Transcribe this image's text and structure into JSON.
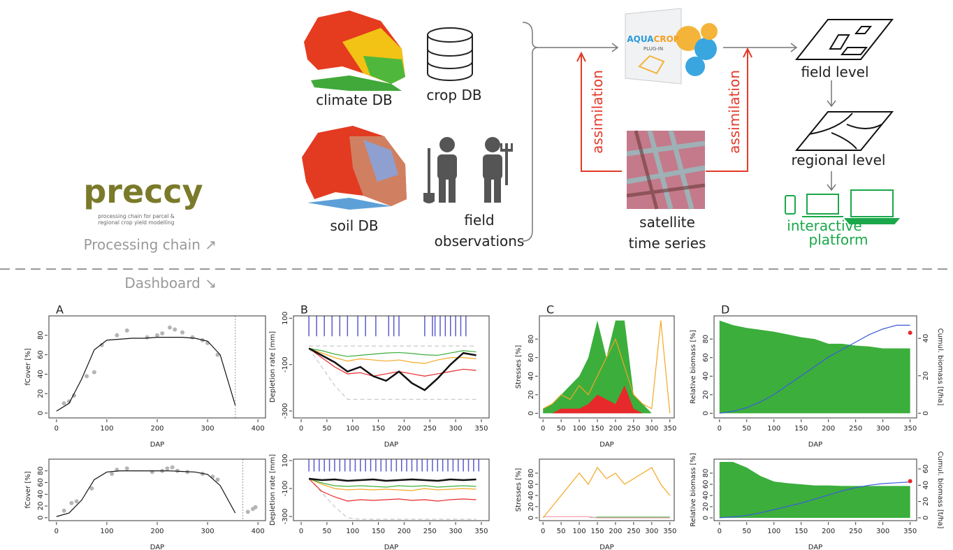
{
  "diagram": {
    "logo": {
      "name": "preccy",
      "tagline": [
        "processing chain for parcel &",
        "regional crop yield modelling"
      ]
    },
    "sections": [
      "Processing chain ↗",
      "Dashboard ↘"
    ],
    "inputs": [
      "climate DB",
      "crop DB",
      "soil DB"
    ],
    "field_observations": [
      "field",
      "observations"
    ],
    "plugin": [
      "AQUA",
      "CROP",
      "PLUG-IN"
    ],
    "assimilation": [
      "assimilation",
      "assimilation"
    ],
    "satellite": [
      "satellite",
      "time series"
    ],
    "levels": [
      "field level",
      "regional level"
    ],
    "platform": [
      "interactive",
      "platform"
    ]
  },
  "chart_data": [
    {
      "type": "line",
      "title": "A",
      "xlabel": "DAP",
      "ylabel": "fCover [%]",
      "xlim": [
        -15,
        415
      ],
      "xticks": [
        0,
        100,
        200,
        300,
        400
      ],
      "ylim": [
        -5,
        100
      ],
      "yticks": [
        0,
        20,
        40,
        60,
        80
      ],
      "vline": 355,
      "x": [
        0,
        25,
        50,
        75,
        100,
        125,
        150,
        175,
        200,
        225,
        250,
        275,
        300,
        325,
        355
      ],
      "series": [
        {
          "kind": "points",
          "color": "#b5b5b5",
          "x": [
            15,
            25,
            35,
            60,
            75,
            90,
            120,
            140,
            180,
            200,
            210,
            225,
            235,
            250,
            270,
            290,
            300,
            320
          ],
          "values": [
            10,
            12,
            18,
            38,
            42,
            70,
            80,
            85,
            78,
            80,
            82,
            88,
            86,
            83,
            78,
            75,
            72,
            60
          ]
        },
        {
          "kind": "line",
          "color": "#111111",
          "values": [
            2,
            10,
            35,
            65,
            75,
            76,
            77,
            77,
            78,
            78,
            78,
            77,
            74,
            60,
            8
          ]
        }
      ]
    },
    {
      "type": "line",
      "title": "B",
      "xlabel": "DAP",
      "ylabel": "Depletion rate [mm]",
      "xlim": [
        -15,
        365
      ],
      "xticks": [
        0,
        50,
        100,
        150,
        200,
        250,
        300,
        350
      ],
      "ylim": [
        -330,
        110
      ],
      "yticks": [
        100,
        -100,
        -300
      ],
      "events": {
        "color": "#5a5ad0",
        "x": [
          15,
          30,
          45,
          60,
          75,
          90,
          110,
          125,
          145,
          170,
          180,
          190,
          240,
          255,
          260,
          270,
          280,
          290,
          300,
          310,
          320
        ]
      },
      "x": [
        15,
        40,
        65,
        90,
        115,
        140,
        165,
        190,
        215,
        240,
        265,
        290,
        315,
        340
      ],
      "series": [
        {
          "kind": "line",
          "color": "#c8c8c8",
          "linestyle": "dashed",
          "values": [
            -20,
            -20,
            -20,
            -20,
            -20,
            -20,
            -20,
            -20,
            -20,
            -20,
            -20,
            -20,
            -20,
            -20
          ]
        },
        {
          "kind": "line",
          "color": "#c8c8c8",
          "linestyle": "dashed",
          "values": [
            -30,
            -110,
            -190,
            -250,
            -250,
            -250,
            -250,
            -250,
            -250,
            -250,
            -250,
            -250,
            -250,
            -250
          ]
        },
        {
          "kind": "line",
          "color": "#e8292b",
          "values": [
            -30,
            -70,
            -110,
            -140,
            -135,
            -150,
            -140,
            -130,
            -140,
            -150,
            -140,
            -130,
            -120,
            -125
          ]
        },
        {
          "kind": "line",
          "color": "#f5a623",
          "values": [
            -30,
            -50,
            -70,
            -85,
            -75,
            -80,
            -85,
            -80,
            -90,
            -95,
            -80,
            -70,
            -70,
            -75
          ]
        },
        {
          "kind": "line",
          "color": "#3cae3c",
          "values": [
            -30,
            -40,
            -55,
            -65,
            -60,
            -55,
            -50,
            -48,
            -52,
            -58,
            -60,
            -50,
            -40,
            -45
          ]
        },
        {
          "kind": "line",
          "color": "#111111",
          "width": 2.5,
          "values": [
            -30,
            -60,
            -90,
            -130,
            -110,
            -150,
            -170,
            -130,
            -180,
            -210,
            -160,
            -100,
            -50,
            -60
          ]
        }
      ]
    },
    {
      "type": "area",
      "title": "C",
      "xlabel": "DAP",
      "ylabel": "Stresses [%]",
      "xlim": [
        -10,
        362
      ],
      "xticks": [
        0,
        50,
        100,
        150,
        200,
        250,
        300,
        350
      ],
      "ylim": [
        -5,
        105
      ],
      "yticks": [
        0,
        20,
        40,
        60,
        80
      ],
      "x": [
        0,
        25,
        50,
        75,
        100,
        125,
        150,
        175,
        200,
        225,
        250,
        275,
        300,
        325,
        350
      ],
      "series": [
        {
          "kind": "area",
          "color": "#3cae3c",
          "values": [
            5,
            10,
            20,
            30,
            40,
            60,
            100,
            60,
            100,
            100,
            20,
            10,
            0,
            0,
            0
          ]
        },
        {
          "kind": "area",
          "color": "#e8292b",
          "values": [
            0,
            0,
            5,
            5,
            5,
            10,
            20,
            15,
            10,
            30,
            5,
            0,
            0,
            0,
            0
          ]
        },
        {
          "kind": "line",
          "color": "#f5a623",
          "values": [
            5,
            10,
            20,
            15,
            30,
            20,
            40,
            60,
            80,
            50,
            20,
            10,
            5,
            100,
            0
          ]
        }
      ]
    },
    {
      "type": "area",
      "title": "D",
      "xlabel": "DAP",
      "ylabel": "Relative biomass [%]",
      "y2label": "Cumul. biomass [t/ha]",
      "xlim": [
        -10,
        362
      ],
      "xticks": [
        0,
        50,
        100,
        150,
        200,
        250,
        300,
        350
      ],
      "ylim": [
        -5,
        105
      ],
      "yticks": [
        0,
        20,
        40,
        60,
        80
      ],
      "y2lim": [
        -2.5,
        52
      ],
      "y2ticks": [
        0,
        20,
        40
      ],
      "x": [
        0,
        25,
        50,
        75,
        100,
        125,
        150,
        175,
        200,
        225,
        250,
        275,
        300,
        325,
        350
      ],
      "series": [
        {
          "kind": "area",
          "color": "#3cae3c",
          "values": [
            100,
            95,
            92,
            90,
            88,
            85,
            82,
            80,
            75,
            75,
            73,
            72,
            70,
            70,
            70
          ]
        },
        {
          "kind": "line",
          "color": "#3b5bdb",
          "axis": "y2",
          "values": [
            0,
            1,
            3,
            6,
            10,
            15,
            20,
            25,
            30,
            34,
            38,
            42,
            45,
            47,
            47
          ]
        },
        {
          "kind": "points",
          "color": "#e8292b",
          "axis": "y2",
          "x": [
            350
          ],
          "values": [
            43
          ]
        }
      ]
    },
    {
      "type": "line",
      "xlabel": "DAP",
      "ylabel": "fCover [%]",
      "xlim": [
        -15,
        415
      ],
      "xticks": [
        0,
        100,
        200,
        300,
        400
      ],
      "ylim": [
        -5,
        100
      ],
      "yticks": [
        0,
        20,
        40,
        60,
        80
      ],
      "vline": 370,
      "x": [
        0,
        25,
        50,
        75,
        100,
        125,
        150,
        175,
        200,
        225,
        250,
        275,
        300,
        325,
        355
      ],
      "series": [
        {
          "kind": "points",
          "color": "#b5b5b5",
          "x": [
            15,
            30,
            40,
            70,
            110,
            120,
            140,
            190,
            210,
            220,
            230,
            240,
            260,
            290,
            310,
            320,
            380,
            390,
            395
          ],
          "values": [
            12,
            25,
            28,
            50,
            75,
            82,
            84,
            78,
            80,
            84,
            86,
            80,
            78,
            75,
            70,
            65,
            10,
            15,
            18
          ]
        },
        {
          "kind": "line",
          "color": "#111111",
          "values": [
            2,
            8,
            30,
            65,
            78,
            80,
            80,
            80,
            80,
            80,
            79,
            78,
            74,
            55,
            8
          ]
        }
      ]
    },
    {
      "type": "line",
      "xlabel": "DAP",
      "ylabel": "Depletion rate [mm]",
      "xlim": [
        -15,
        365
      ],
      "xticks": [
        0,
        50,
        100,
        150,
        200,
        250,
        300,
        350
      ],
      "ylim": [
        -330,
        110
      ],
      "yticks": [
        100,
        -100,
        -300
      ],
      "events": {
        "color": "#5a5ad0",
        "x": [
          15,
          25,
          35,
          45,
          55,
          65,
          75,
          85,
          95,
          105,
          115,
          125,
          135,
          145,
          155,
          165,
          175,
          185,
          195,
          205,
          215,
          225,
          235,
          245,
          255,
          265,
          275,
          285,
          295,
          305,
          315,
          325,
          335,
          345
        ]
      },
      "x": [
        15,
        40,
        65,
        90,
        115,
        140,
        165,
        190,
        215,
        240,
        265,
        290,
        315,
        340
      ],
      "series": [
        {
          "kind": "line",
          "color": "#c8c8c8",
          "linestyle": "dashed",
          "values": [
            -30,
            -130,
            -230,
            -310,
            -320,
            -320,
            -320,
            -320,
            -320,
            -320,
            -320,
            -320,
            -320,
            -320
          ]
        },
        {
          "kind": "line",
          "color": "#e8292b",
          "values": [
            -30,
            -120,
            -160,
            -190,
            -180,
            -185,
            -180,
            -175,
            -185,
            -180,
            -190,
            -180,
            -175,
            -180
          ]
        },
        {
          "kind": "line",
          "color": "#f5a623",
          "values": [
            -30,
            -70,
            -100,
            -110,
            -105,
            -110,
            -105,
            -110,
            -115,
            -100,
            -110,
            -105,
            -100,
            -105
          ]
        },
        {
          "kind": "line",
          "color": "#3cae3c",
          "values": [
            -30,
            -60,
            -80,
            -85,
            -80,
            -85,
            -90,
            -80,
            -85,
            -80,
            -90,
            -85,
            -80,
            -85
          ]
        },
        {
          "kind": "line",
          "color": "#111111",
          "width": 2.5,
          "values": [
            -30,
            -40,
            -35,
            -45,
            -40,
            -35,
            -45,
            -40,
            -35,
            -40,
            -45,
            -35,
            -40,
            -35
          ]
        }
      ]
    },
    {
      "type": "area",
      "xlabel": "DAP",
      "ylabel": "Stresses [%]",
      "xlim": [
        -10,
        362
      ],
      "xticks": [
        0,
        50,
        100,
        150,
        200,
        250,
        300,
        350
      ],
      "ylim": [
        -5,
        105
      ],
      "yticks": [
        0,
        20,
        40,
        60,
        80
      ],
      "x": [
        0,
        25,
        50,
        75,
        100,
        125,
        150,
        175,
        200,
        225,
        250,
        275,
        300,
        325,
        350
      ],
      "series": [
        {
          "kind": "area",
          "color": "#3cae3c",
          "values": [
            0,
            0,
            0,
            0,
            0,
            0,
            2,
            2,
            2,
            2,
            2,
            2,
            2,
            2,
            2
          ]
        },
        {
          "kind": "line",
          "color": "#f4a0b0",
          "values": [
            2,
            2,
            2,
            2,
            2,
            2,
            0,
            0,
            0,
            0,
            0,
            0,
            0,
            0,
            0
          ]
        },
        {
          "kind": "line",
          "color": "#f5a623",
          "values": [
            0,
            20,
            40,
            60,
            80,
            60,
            90,
            70,
            80,
            60,
            70,
            80,
            90,
            60,
            40
          ]
        }
      ]
    },
    {
      "type": "area",
      "xlabel": "DAP",
      "ylabel": "Relative biomass [%]",
      "y2label": "Cumul. biomass [t/ha]",
      "xlim": [
        -10,
        362
      ],
      "xticks": [
        0,
        50,
        100,
        150,
        200,
        250,
        300,
        350
      ],
      "ylim": [
        -5,
        105
      ],
      "yticks": [
        0,
        20,
        40,
        60,
        80
      ],
      "y2lim": [
        -3.5,
        72
      ],
      "y2ticks": [
        0,
        20,
        40,
        60
      ],
      "x": [
        0,
        25,
        50,
        75,
        100,
        125,
        150,
        175,
        200,
        225,
        250,
        275,
        300,
        325,
        350
      ],
      "series": [
        {
          "kind": "area",
          "color": "#3cae3c",
          "values": [
            100,
            100,
            90,
            75,
            65,
            62,
            60,
            58,
            58,
            57,
            57,
            57,
            57,
            57,
            57
          ]
        },
        {
          "kind": "line",
          "color": "#3b5bdb",
          "axis": "y2",
          "values": [
            0,
            1,
            3,
            6,
            10,
            14,
            18,
            23,
            28,
            33,
            37,
            40,
            42,
            43,
            44
          ]
        },
        {
          "kind": "points",
          "color": "#e8292b",
          "axis": "y2",
          "x": [
            350
          ],
          "values": [
            45
          ]
        }
      ]
    }
  ]
}
